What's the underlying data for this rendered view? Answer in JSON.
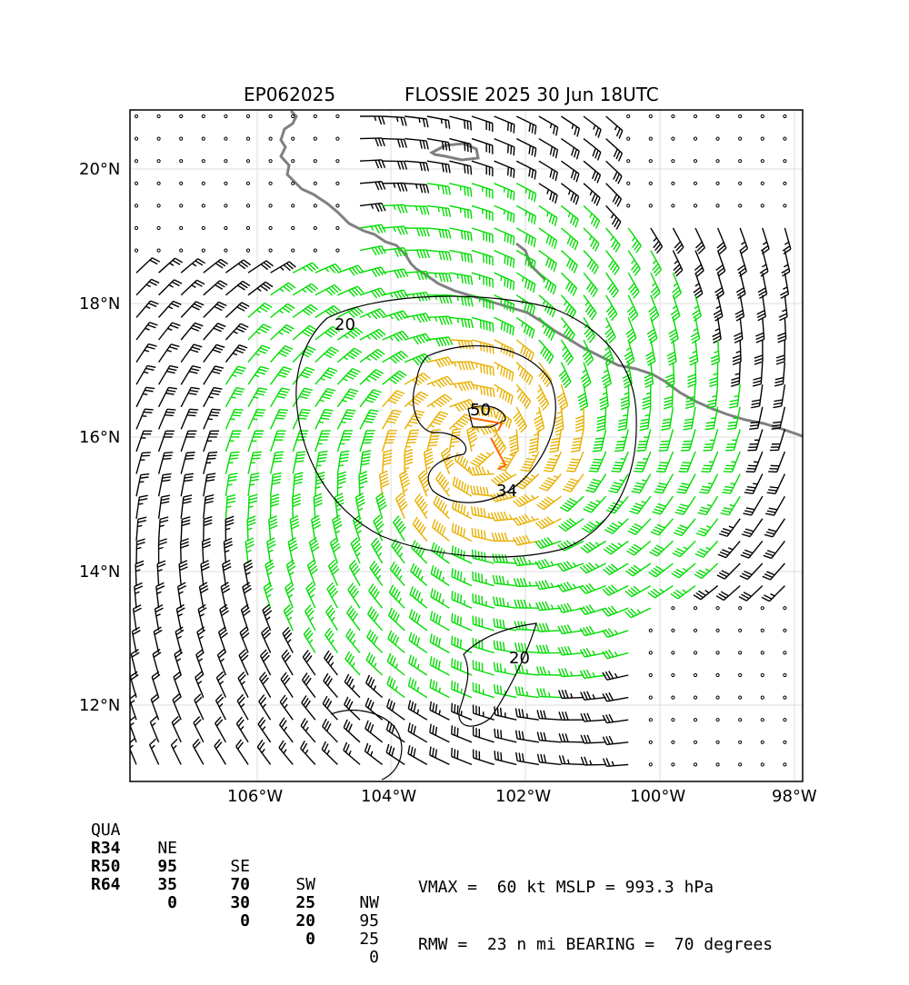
{
  "header": {
    "storm_id": "EP062025",
    "title": "FLOSSIE 2025 30 Jun 18UTC"
  },
  "axes": {
    "lat_labels": [
      "20°N",
      "18°N",
      "16°N",
      "14°N",
      "12°N"
    ],
    "lon_labels": [
      "106°W",
      "104°W",
      "102°W",
      "100°W",
      "98°W"
    ]
  },
  "contours": {
    "labels": [
      "20",
      "50",
      "34",
      "20"
    ]
  },
  "wind_radii": {
    "headers": [
      "QUA",
      "NE",
      "SE",
      "SW",
      "NW"
    ],
    "rows": [
      {
        "name": "R34",
        "values": [
          "95",
          "70",
          "25",
          "95"
        ]
      },
      {
        "name": "R50",
        "values": [
          "35",
          "30",
          "20",
          "25"
        ]
      },
      {
        "name": "R64",
        "values": [
          "0",
          "0",
          "0",
          "0"
        ]
      }
    ]
  },
  "stats": {
    "line1": "VMAX =  60 kt MSLP = 993.3 hPa",
    "line2": "RMW =  23 n mi BEARING =  70 degrees"
  },
  "colors": {
    "barb_default": "#000000",
    "barb_34kt": "#00dd00",
    "barb_50kt": "#e8b000",
    "barb_64kt": "#ff6600",
    "coastline": "#808080",
    "grid": "#dcdcdc"
  },
  "map": {
    "center": {
      "lat": 15.8,
      "lon": 102.6
    }
  }
}
